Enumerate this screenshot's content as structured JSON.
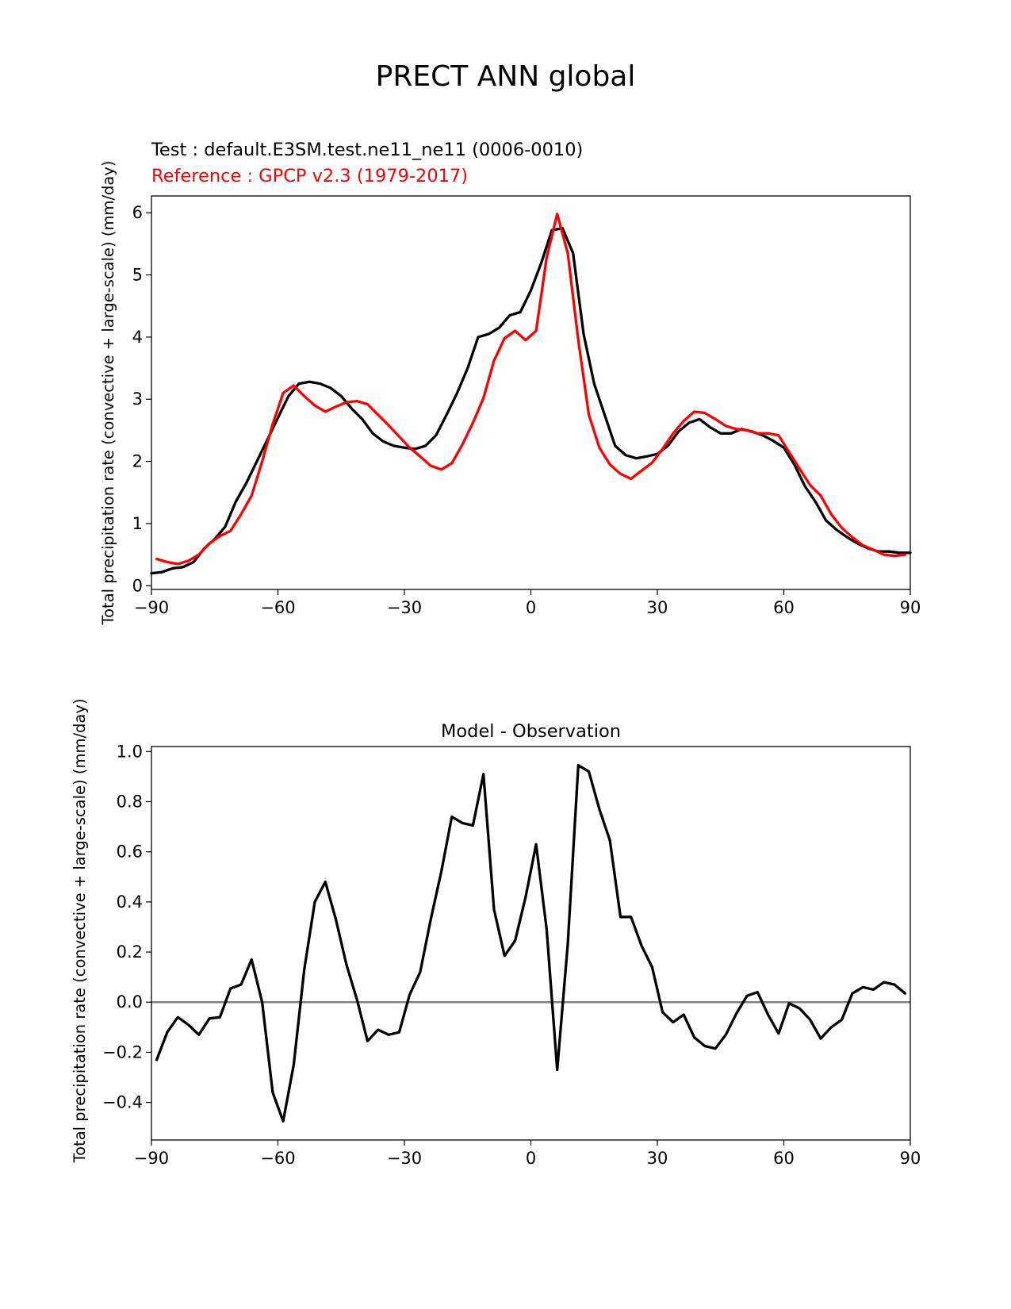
{
  "figure": {
    "title": "PRECT ANN global",
    "colors": {
      "test": "#000000",
      "reference": "#ff0000",
      "zero_line": "#808080"
    }
  },
  "chart_data": [
    {
      "type": "line",
      "test_label": "Test : default.E3SM.test.ne11_ne11 (0006-0010)",
      "reference_label": "Reference : GPCP v2.3 (1979-2017)",
      "xlabel": "",
      "ylabel": "Total precipitation rate (convective + large-scale) (mm/day)",
      "xlim": [
        -90,
        90
      ],
      "ylim": [
        -0.06,
        6.27
      ],
      "xticks": [
        "−90",
        "−60",
        "−30",
        "0",
        "30",
        "60",
        "90"
      ],
      "xtick_values": [
        -90,
        -60,
        -30,
        0,
        30,
        60,
        90
      ],
      "yticks": [
        "0",
        "1",
        "2",
        "3",
        "4",
        "5",
        "6"
      ],
      "ytick_values": [
        0,
        1,
        2,
        3,
        4,
        5,
        6
      ],
      "grid": false,
      "series": [
        {
          "name": "Test",
          "color": "#000000",
          "x": [
            -90,
            -87.5,
            -85,
            -82.5,
            -80,
            -77.5,
            -75,
            -72.5,
            -70,
            -67.5,
            -65,
            -62.5,
            -60,
            -57.5,
            -55,
            -52.5,
            -50,
            -47.5,
            -45,
            -42.5,
            -40,
            -37.5,
            -35,
            -32.5,
            -30,
            -27.5,
            -25,
            -22.5,
            -20,
            -17.5,
            -15,
            -12.5,
            -10,
            -7.5,
            -5,
            -2.5,
            0,
            2.5,
            5,
            7.5,
            10,
            12.5,
            15,
            17.5,
            20,
            22.5,
            25,
            27.5,
            30,
            32.5,
            35,
            37.5,
            40,
            42.5,
            45,
            47.5,
            50,
            52.5,
            55,
            57.5,
            60,
            62.5,
            65,
            67.5,
            70,
            72.5,
            75,
            77.5,
            80,
            82.5,
            85,
            87.5,
            90
          ],
          "y": [
            0.2,
            0.22,
            0.28,
            0.3,
            0.38,
            0.6,
            0.75,
            0.95,
            1.35,
            1.65,
            2.0,
            2.35,
            2.7,
            3.05,
            3.25,
            3.28,
            3.25,
            3.18,
            3.05,
            2.85,
            2.68,
            2.45,
            2.32,
            2.25,
            2.22,
            2.2,
            2.25,
            2.42,
            2.75,
            3.1,
            3.5,
            4.0,
            4.05,
            4.15,
            4.35,
            4.4,
            4.75,
            5.2,
            5.72,
            5.75,
            5.35,
            4.05,
            3.25,
            2.75,
            2.25,
            2.1,
            2.05,
            2.08,
            2.12,
            2.25,
            2.48,
            2.62,
            2.68,
            2.55,
            2.45,
            2.45,
            2.52,
            2.48,
            2.42,
            2.33,
            2.22,
            1.95,
            1.6,
            1.35,
            1.05,
            0.9,
            0.78,
            0.68,
            0.6,
            0.55,
            0.55,
            0.53,
            0.53
          ]
        },
        {
          "name": "Reference",
          "color": "#ff0000",
          "x": [
            -88.75,
            -86.25,
            -83.75,
            -81.25,
            -78.75,
            -76.25,
            -73.75,
            -71.25,
            -68.75,
            -66.25,
            -63.75,
            -61.25,
            -58.75,
            -56.25,
            -53.75,
            -51.25,
            -48.75,
            -46.25,
            -43.75,
            -41.25,
            -38.75,
            -36.25,
            -33.75,
            -31.25,
            -28.75,
            -26.25,
            -23.75,
            -21.25,
            -18.75,
            -16.25,
            -13.75,
            -11.25,
            -8.75,
            -6.25,
            -3.75,
            -1.25,
            1.25,
            3.75,
            6.25,
            8.75,
            11.25,
            13.75,
            16.25,
            18.75,
            21.25,
            23.75,
            26.25,
            28.75,
            31.25,
            33.75,
            36.25,
            38.75,
            41.25,
            43.75,
            46.25,
            48.75,
            51.25,
            53.75,
            56.25,
            58.75,
            61.25,
            63.75,
            66.25,
            68.75,
            71.25,
            73.75,
            76.25,
            78.75,
            81.25,
            83.75,
            86.25,
            88.75
          ],
          "y": [
            0.43,
            0.38,
            0.35,
            0.4,
            0.5,
            0.68,
            0.8,
            0.88,
            1.15,
            1.45,
            2.0,
            2.6,
            3.1,
            3.22,
            3.05,
            2.9,
            2.8,
            2.88,
            2.95,
            2.97,
            2.92,
            2.75,
            2.58,
            2.4,
            2.22,
            2.08,
            1.93,
            1.87,
            1.97,
            2.27,
            2.62,
            3.02,
            3.62,
            3.98,
            4.1,
            3.95,
            4.1,
            5.28,
            5.98,
            5.35,
            3.95,
            2.75,
            2.22,
            1.95,
            1.8,
            1.72,
            1.85,
            1.98,
            2.2,
            2.45,
            2.65,
            2.8,
            2.78,
            2.68,
            2.57,
            2.52,
            2.5,
            2.45,
            2.45,
            2.42,
            2.15,
            1.88,
            1.62,
            1.45,
            1.15,
            0.93,
            0.78,
            0.65,
            0.58,
            0.5,
            0.48,
            0.5
          ]
        }
      ]
    },
    {
      "type": "line",
      "title": "Model - Observation",
      "xlabel": "",
      "ylabel": "Total precipitation rate (convective + large-scale) (mm/day)",
      "xlim": [
        -90,
        90
      ],
      "ylim": [
        -0.55,
        1.02
      ],
      "xticks": [
        "−90",
        "−60",
        "−30",
        "0",
        "30",
        "60",
        "90"
      ],
      "xtick_values": [
        -90,
        -60,
        -30,
        0,
        30,
        60,
        90
      ],
      "yticks": [
        "−0.4",
        "−0.2",
        "0.0",
        "0.2",
        "0.4",
        "0.6",
        "0.8",
        "1.0"
      ],
      "ytick_values": [
        -0.4,
        -0.2,
        0.0,
        0.2,
        0.4,
        0.6,
        0.8,
        1.0
      ],
      "grid": false,
      "zero_line": 0,
      "series": [
        {
          "color": "#000000",
          "x": [
            -88.75,
            -86.25,
            -83.75,
            -81.25,
            -78.75,
            -76.25,
            -73.75,
            -71.25,
            -68.75,
            -66.25,
            -63.75,
            -61.25,
            -58.75,
            -56.25,
            -53.75,
            -51.25,
            -48.75,
            -46.25,
            -43.75,
            -41.25,
            -38.75,
            -36.25,
            -33.75,
            -31.25,
            -28.75,
            -26.25,
            -23.75,
            -21.25,
            -18.75,
            -16.25,
            -13.75,
            -11.25,
            -8.75,
            -6.25,
            -3.75,
            -1.25,
            1.25,
            3.75,
            6.25,
            8.75,
            11.25,
            13.75,
            16.25,
            18.75,
            21.25,
            23.75,
            26.25,
            28.75,
            31.25,
            33.75,
            36.25,
            38.75,
            41.25,
            43.75,
            46.25,
            48.75,
            51.25,
            53.75,
            56.25,
            58.75,
            61.25,
            63.75,
            66.25,
            68.75,
            71.25,
            73.75,
            76.25,
            78.75,
            81.25,
            83.75,
            86.25,
            88.75
          ],
          "y": [
            -0.23,
            -0.12,
            -0.06,
            -0.09,
            -0.13,
            -0.065,
            -0.06,
            0.055,
            0.07,
            0.17,
            0.0,
            -0.36,
            -0.475,
            -0.25,
            0.13,
            0.4,
            0.48,
            0.33,
            0.15,
            0.01,
            -0.155,
            -0.11,
            -0.13,
            -0.12,
            0.03,
            0.12,
            0.33,
            0.52,
            0.74,
            0.715,
            0.705,
            0.91,
            0.37,
            0.185,
            0.245,
            0.42,
            0.63,
            0.29,
            -0.27,
            0.23,
            0.945,
            0.92,
            0.77,
            0.645,
            0.34,
            0.34,
            0.225,
            0.14,
            -0.04,
            -0.08,
            -0.05,
            -0.14,
            -0.175,
            -0.185,
            -0.13,
            -0.045,
            0.025,
            0.04,
            -0.05,
            -0.125,
            -0.005,
            -0.025,
            -0.07,
            -0.145,
            -0.1,
            -0.07,
            0.035,
            0.06,
            0.05,
            0.08,
            0.07,
            0.035
          ]
        }
      ]
    }
  ]
}
